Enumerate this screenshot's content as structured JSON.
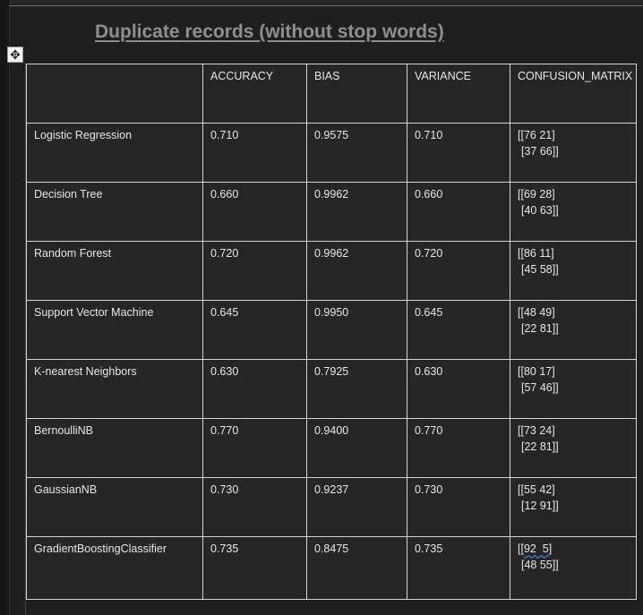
{
  "document": {
    "title": "Duplicate records (without stop words)"
  },
  "table": {
    "headers": [
      "",
      "ACCURACY",
      "BIAS",
      "VARIANCE",
      "CONFUSION_MATRIX"
    ],
    "rows": [
      {
        "model": "Logistic Regression",
        "accuracy": "0.710",
        "bias": "0.9575",
        "variance": "0.710",
        "cm_line1": "[[76 21]",
        "cm_line2": "[37 66]]"
      },
      {
        "model": "Decision Tree",
        "accuracy": "0.660",
        "bias": "0.9962",
        "variance": "0.660",
        "cm_line1": "[[69 28]",
        "cm_line2": "[40 63]]"
      },
      {
        "model": "Random Forest",
        "accuracy": "0.720",
        "bias": "0.9962",
        "variance": "0.720",
        "cm_line1": "[[86 11]",
        "cm_line2": "[45 58]]"
      },
      {
        "model": "Support Vector Machine",
        "accuracy": "0.645",
        "bias": "0.9950",
        "variance": "0.645",
        "cm_line1": "[[48 49]",
        "cm_line2": "[22 81]]"
      },
      {
        "model": "K-nearest Neighbors",
        "accuracy": "0.630",
        "bias": "0.7925",
        "variance": "0.630",
        "cm_line1": "[[80 17]",
        "cm_line2": "[57 46]]"
      },
      {
        "model": "BernoulliNB",
        "accuracy": "0.770",
        "bias": "0.9400",
        "variance": "0.770",
        "cm_line1": "[[73 24]",
        "cm_line2": "[22 81]]"
      },
      {
        "model": "GaussianNB",
        "accuracy": "0.730",
        "bias": "0.9237",
        "variance": "0.730",
        "cm_line1": "[[55 42]",
        "cm_line2": "[12 91]]"
      },
      {
        "model": "GradientBoostingClassifier",
        "accuracy": "0.735",
        "bias": "0.8475",
        "variance": "0.735",
        "cm_line1_prefix": "[[",
        "cm_line1_flagged": "92  5",
        "cm_line1_suffix": "]",
        "cm_line2": "[48 55]]"
      }
    ]
  },
  "icons": {
    "move_handle": "move-arrows-icon"
  }
}
